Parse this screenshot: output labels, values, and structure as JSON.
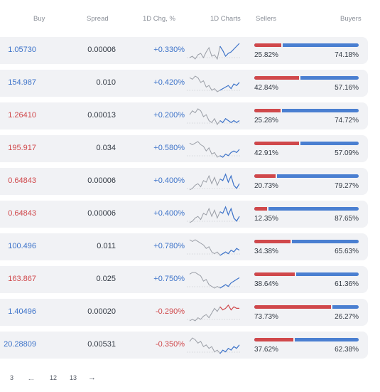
{
  "header": {
    "buy": "Buy",
    "spread": "Spread",
    "change": "1D Chg, %",
    "charts": "1D Charts",
    "sellers": "Sellers",
    "buyers": "Buyers"
  },
  "rows": [
    {
      "buy": "1.05730",
      "buy_dir": "up",
      "spread": "0.00006",
      "change": "+0.330%",
      "change_dir": "pos",
      "sellers_pct": "25.82%",
      "buyers_pct": "74.18%",
      "sellers_value": 25.82,
      "spark": [
        4,
        5,
        3,
        6,
        7,
        4,
        8,
        11,
        5,
        6,
        3,
        12,
        9,
        5,
        7,
        8,
        10,
        12,
        14
      ],
      "spark_tail_color": "#3d73c9"
    },
    {
      "buy": "154.987",
      "buy_dir": "up",
      "spread": "0.010",
      "change": "+0.420%",
      "change_dir": "pos",
      "sellers_pct": "42.84%",
      "buyers_pct": "57.16%",
      "sellers_value": 42.84,
      "spark": [
        12,
        11,
        13,
        12,
        9,
        10,
        6,
        7,
        4,
        5,
        3,
        4,
        5,
        6,
        7,
        5,
        8,
        7,
        9
      ],
      "spark_tail_color": "#3d73c9"
    },
    {
      "buy": "1.26410",
      "buy_dir": "down",
      "spread": "0.00013",
      "change": "+0.200%",
      "change_dir": "pos",
      "sellers_pct": "25.28%",
      "buyers_pct": "74.72%",
      "sellers_value": 25.28,
      "spark": [
        10,
        12,
        11,
        13,
        12,
        9,
        10,
        7,
        6,
        8,
        5,
        7,
        6,
        8,
        7,
        6,
        7,
        6,
        7
      ],
      "spark_tail_color": "#3d73c9"
    },
    {
      "buy": "195.917",
      "buy_dir": "down",
      "spread": "0.034",
      "change": "+0.580%",
      "change_dir": "pos",
      "sellers_pct": "42.91%",
      "buyers_pct": "57.09%",
      "sellers_value": 42.91,
      "spark": [
        13,
        12,
        13,
        14,
        12,
        11,
        8,
        10,
        6,
        7,
        4,
        5,
        4,
        6,
        5,
        7,
        8,
        7,
        9
      ],
      "spark_tail_color": "#3d73c9"
    },
    {
      "buy": "0.64843",
      "buy_dir": "down",
      "spread": "0.00006",
      "change": "+0.400%",
      "change_dir": "pos",
      "sellers_pct": "20.73%",
      "buyers_pct": "79.27%",
      "sellers_value": 20.73,
      "spark": [
        3,
        4,
        6,
        7,
        5,
        9,
        8,
        12,
        7,
        11,
        6,
        10,
        9,
        13,
        8,
        12,
        6,
        4,
        7
      ],
      "spark_tail_color": "#3d73c9"
    },
    {
      "buy": "0.64843",
      "buy_dir": "down",
      "spread": "0.00006",
      "change": "+0.400%",
      "change_dir": "pos",
      "sellers_pct": "12.35%",
      "buyers_pct": "87.65%",
      "sellers_value": 12.35,
      "spark": [
        3,
        4,
        6,
        7,
        5,
        9,
        8,
        12,
        7,
        11,
        6,
        10,
        9,
        13,
        8,
        12,
        6,
        4,
        7
      ],
      "spark_tail_color": "#3d73c9"
    },
    {
      "buy": "100.496",
      "buy_dir": "up",
      "spread": "0.011",
      "change": "+0.780%",
      "change_dir": "pos",
      "sellers_pct": "34.38%",
      "buyers_pct": "65.63%",
      "sellers_value": 34.38,
      "spark": [
        13,
        12,
        13,
        12,
        11,
        10,
        8,
        9,
        6,
        5,
        6,
        4,
        5,
        6,
        5,
        7,
        6,
        8,
        7
      ],
      "spark_tail_color": "#3d73c9"
    },
    {
      "buy": "163.867",
      "buy_dir": "down",
      "spread": "0.025",
      "change": "+0.750%",
      "change_dir": "pos",
      "sellers_pct": "38.64%",
      "buyers_pct": "61.36%",
      "sellers_value": 38.64,
      "spark": [
        12,
        13,
        13,
        12,
        11,
        8,
        9,
        6,
        5,
        4,
        5,
        4,
        5,
        6,
        5,
        7,
        8,
        9,
        10
      ],
      "spark_tail_color": "#3d73c9"
    },
    {
      "buy": "1.40496",
      "buy_dir": "up",
      "spread": "0.00020",
      "change": "-0.290%",
      "change_dir": "neg",
      "sellers_pct": "73.73%",
      "buyers_pct": "26.27%",
      "sellers_value": 73.73,
      "spark": [
        4,
        5,
        4,
        6,
        5,
        7,
        8,
        6,
        9,
        12,
        10,
        13,
        11,
        12,
        14,
        11,
        13,
        12,
        12
      ],
      "spark_tail_color": "#d0484b"
    },
    {
      "buy": "20.28809",
      "buy_dir": "up",
      "spread": "0.00531",
      "change": "-0.350%",
      "change_dir": "neg",
      "sellers_pct": "37.62%",
      "buyers_pct": "62.38%",
      "sellers_value": 37.62,
      "spark": [
        11,
        13,
        12,
        10,
        11,
        8,
        9,
        7,
        8,
        5,
        6,
        4,
        6,
        5,
        7,
        6,
        8,
        7,
        9
      ],
      "spark_tail_color": "#3d73c9"
    }
  ],
  "pagination": {
    "p1": "3",
    "ellipsis": "...",
    "p2": "12",
    "p3": "13",
    "next": "→"
  }
}
